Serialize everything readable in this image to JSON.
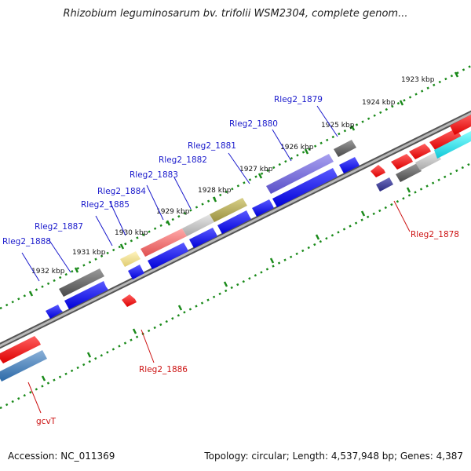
{
  "title": "Rhizobium leguminosarum bv. trifolii WSM2304, complete genom...",
  "footer": {
    "accession": "Accession: NC_011369",
    "summary": "Topology: circular; Length: 4,537,948 bp; Genes: 4,387"
  },
  "scale_ticks": [
    "1923 kbp",
    "1924 kbp",
    "1925 kbp",
    "1926 kbp",
    "1927 kbp",
    "1928 kbp",
    "1929 kbp",
    "1930 kbp",
    "1931 kbp",
    "1932 kbp"
  ],
  "gene_labels_forward": [
    "Rleg2_1879",
    "Rleg2_1880",
    "Rleg2_1881",
    "Rleg2_1882",
    "Rleg2_1883",
    "Rleg2_1884",
    "Rleg2_1885",
    "Rleg2_1887",
    "Rleg2_1888"
  ],
  "gene_labels_reverse": [
    "Rleg2_1878",
    "Rleg2_1886",
    "gcvT"
  ],
  "colors": {
    "forward_label": "#1a1acc",
    "reverse_label": "#cc1111",
    "dotted_scale": "#1a8a1a",
    "backbone": "#8c8c8c",
    "cds_blue": "#1010e0",
    "cds_red": "#ee1111"
  }
}
